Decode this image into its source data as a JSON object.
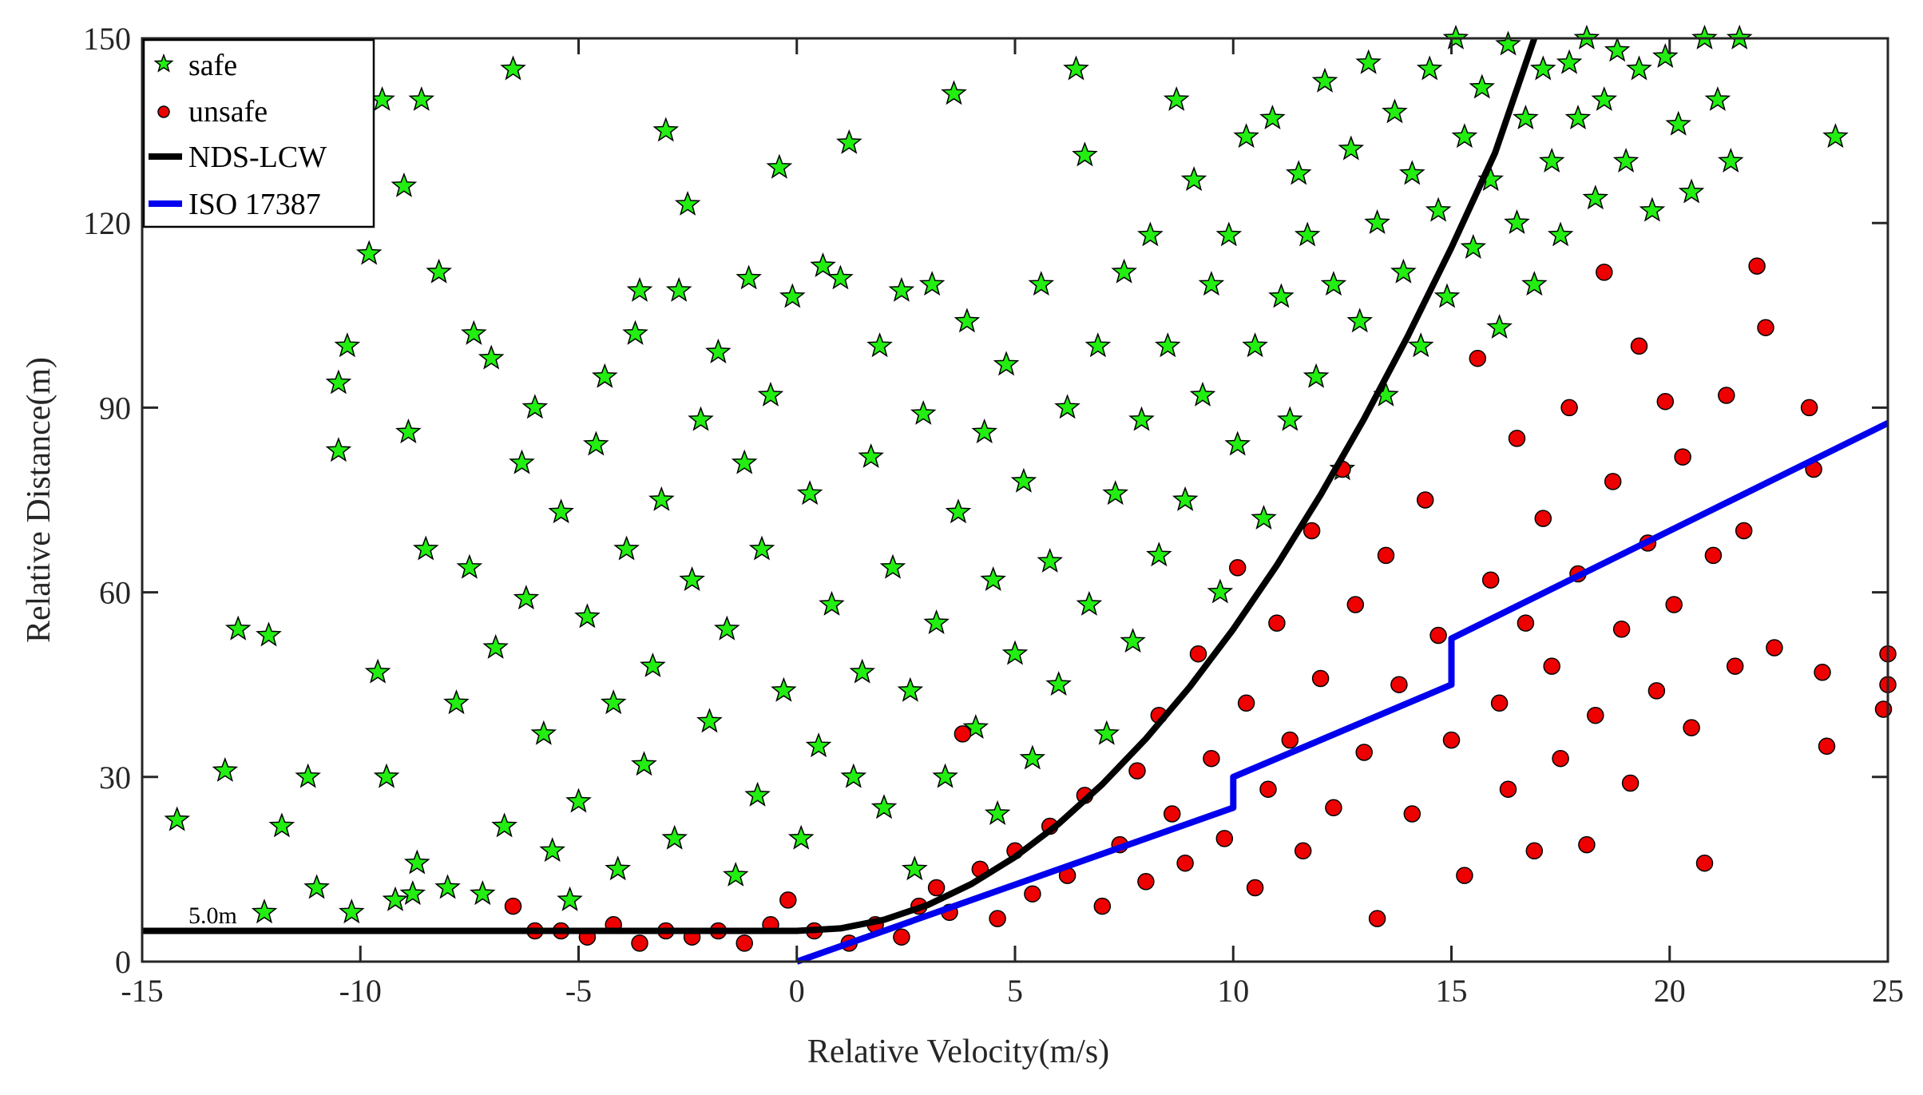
{
  "chart_data": {
    "type": "scatter",
    "xlabel": "Relative Velocity(m/s)",
    "ylabel": "Relative Distance(m)",
    "xlim": [
      -15,
      25
    ],
    "ylim": [
      0,
      150
    ],
    "xticks": [
      "-15",
      "-10",
      "-5",
      "0",
      "5",
      "10",
      "15",
      "20",
      "25"
    ],
    "yticks": [
      "0",
      "30",
      "60",
      "90",
      "120",
      "150"
    ],
    "grid": false,
    "legend_position": "top-left",
    "annotation": "5.0m",
    "series": [
      {
        "name": "safe",
        "kind": "scatter",
        "marker": "star",
        "color": "#22ee11",
        "points": [
          [
            -14.2,
            23
          ],
          [
            -13.1,
            31
          ],
          [
            -12.8,
            54
          ],
          [
            -12.2,
            8
          ],
          [
            -12.1,
            53
          ],
          [
            -11.8,
            22
          ],
          [
            -11.2,
            30
          ],
          [
            -11.0,
            12
          ],
          [
            -10.5,
            83
          ],
          [
            -10.5,
            94
          ],
          [
            -10.3,
            100
          ],
          [
            -10.2,
            8
          ],
          [
            -9.8,
            115
          ],
          [
            -9.6,
            47
          ],
          [
            -9.5,
            140
          ],
          [
            -9.4,
            30
          ],
          [
            -9.2,
            10
          ],
          [
            -9.0,
            126
          ],
          [
            -8.9,
            86
          ],
          [
            -8.8,
            11
          ],
          [
            -8.7,
            16
          ],
          [
            -8.6,
            140
          ],
          [
            -8.5,
            67
          ],
          [
            -8.2,
            112
          ],
          [
            -8.0,
            12
          ],
          [
            -7.8,
            42
          ],
          [
            -7.5,
            64
          ],
          [
            -7.4,
            102
          ],
          [
            -7.2,
            11
          ],
          [
            -7.0,
            98
          ],
          [
            -6.9,
            51
          ],
          [
            -6.7,
            22
          ],
          [
            -6.5,
            145
          ],
          [
            -6.3,
            81
          ],
          [
            -6.2,
            59
          ],
          [
            -6.0,
            90
          ],
          [
            -5.8,
            37
          ],
          [
            -5.6,
            18
          ],
          [
            -5.4,
            73
          ],
          [
            -5.2,
            10
          ],
          [
            -5.0,
            26
          ],
          [
            -4.8,
            56
          ],
          [
            -4.6,
            84
          ],
          [
            -4.4,
            95
          ],
          [
            -4.2,
            42
          ],
          [
            -4.1,
            15
          ],
          [
            -3.9,
            67
          ],
          [
            -3.7,
            102
          ],
          [
            -3.6,
            109
          ],
          [
            -3.5,
            32
          ],
          [
            -3.3,
            48
          ],
          [
            -3.1,
            75
          ],
          [
            -3.0,
            135
          ],
          [
            -2.8,
            20
          ],
          [
            -2.7,
            109
          ],
          [
            -2.5,
            123
          ],
          [
            -2.4,
            62
          ],
          [
            -2.2,
            88
          ],
          [
            -2.0,
            39
          ],
          [
            -1.8,
            99
          ],
          [
            -1.6,
            54
          ],
          [
            -1.4,
            14
          ],
          [
            -1.2,
            81
          ],
          [
            -1.1,
            111
          ],
          [
            -0.9,
            27
          ],
          [
            -0.8,
            67
          ],
          [
            -0.6,
            92
          ],
          [
            -0.4,
            129
          ],
          [
            -0.3,
            44
          ],
          [
            -0.1,
            108
          ],
          [
            0.1,
            20
          ],
          [
            0.3,
            76
          ],
          [
            0.5,
            35
          ],
          [
            0.6,
            113
          ],
          [
            0.8,
            58
          ],
          [
            1.0,
            111
          ],
          [
            1.2,
            133
          ],
          [
            1.3,
            30
          ],
          [
            1.5,
            47
          ],
          [
            1.7,
            82
          ],
          [
            1.9,
            100
          ],
          [
            2.0,
            25
          ],
          [
            2.2,
            64
          ],
          [
            2.4,
            109
          ],
          [
            2.6,
            44
          ],
          [
            2.7,
            15
          ],
          [
            2.9,
            89
          ],
          [
            3.1,
            110
          ],
          [
            3.2,
            55
          ],
          [
            3.4,
            30
          ],
          [
            3.6,
            141
          ],
          [
            3.7,
            73
          ],
          [
            3.9,
            104
          ],
          [
            4.1,
            38
          ],
          [
            4.3,
            86
          ],
          [
            4.5,
            62
          ],
          [
            4.6,
            24
          ],
          [
            4.8,
            97
          ],
          [
            5.0,
            50
          ],
          [
            5.2,
            78
          ],
          [
            5.4,
            33
          ],
          [
            5.6,
            110
          ],
          [
            5.8,
            65
          ],
          [
            6.0,
            45
          ],
          [
            6.2,
            90
          ],
          [
            6.4,
            145
          ],
          [
            6.6,
            131
          ],
          [
            6.7,
            58
          ],
          [
            6.9,
            100
          ],
          [
            7.1,
            37
          ],
          [
            7.3,
            76
          ],
          [
            7.5,
            112
          ],
          [
            7.7,
            52
          ],
          [
            7.9,
            88
          ],
          [
            8.1,
            118
          ],
          [
            8.3,
            66
          ],
          [
            8.5,
            100
          ],
          [
            8.7,
            140
          ],
          [
            8.9,
            75
          ],
          [
            9.1,
            127
          ],
          [
            9.3,
            92
          ],
          [
            9.5,
            110
          ],
          [
            9.7,
            60
          ],
          [
            9.9,
            118
          ],
          [
            10.1,
            84
          ],
          [
            10.3,
            134
          ],
          [
            10.5,
            100
          ],
          [
            10.7,
            72
          ],
          [
            10.9,
            137
          ],
          [
            11.1,
            108
          ],
          [
            11.3,
            88
          ],
          [
            11.5,
            128
          ],
          [
            11.7,
            118
          ],
          [
            11.9,
            95
          ],
          [
            12.1,
            143
          ],
          [
            12.3,
            110
          ],
          [
            12.5,
            80
          ],
          [
            12.7,
            132
          ],
          [
            12.9,
            104
          ],
          [
            13.1,
            146
          ],
          [
            13.3,
            120
          ],
          [
            13.5,
            92
          ],
          [
            13.7,
            138
          ],
          [
            13.9,
            112
          ],
          [
            14.1,
            128
          ],
          [
            14.3,
            100
          ],
          [
            14.5,
            145
          ],
          [
            14.7,
            122
          ],
          [
            14.9,
            108
          ],
          [
            15.1,
            150
          ],
          [
            15.3,
            134
          ],
          [
            15.5,
            116
          ],
          [
            15.7,
            142
          ],
          [
            15.9,
            127
          ],
          [
            16.1,
            103
          ],
          [
            16.3,
            149
          ],
          [
            16.5,
            120
          ],
          [
            16.7,
            137
          ],
          [
            16.9,
            110
          ],
          [
            17.1,
            145
          ],
          [
            17.3,
            130
          ],
          [
            17.5,
            118
          ],
          [
            17.7,
            146
          ],
          [
            17.9,
            137
          ],
          [
            18.1,
            150
          ],
          [
            18.3,
            124
          ],
          [
            18.5,
            140
          ],
          [
            18.8,
            148
          ],
          [
            19.0,
            130
          ],
          [
            19.3,
            145
          ],
          [
            19.6,
            122
          ],
          [
            19.9,
            147
          ],
          [
            20.2,
            136
          ],
          [
            20.5,
            125
          ],
          [
            20.8,
            150
          ],
          [
            21.1,
            140
          ],
          [
            21.4,
            130
          ],
          [
            21.6,
            150
          ],
          [
            23.8,
            134
          ]
        ]
      },
      {
        "name": "unsafe",
        "kind": "scatter",
        "marker": "circle",
        "color": "#ee0000",
        "points": [
          [
            -6.5,
            9
          ],
          [
            -6.0,
            5
          ],
          [
            -5.4,
            5
          ],
          [
            -4.8,
            4
          ],
          [
            -4.2,
            6
          ],
          [
            -3.6,
            3
          ],
          [
            -3.0,
            5
          ],
          [
            -2.4,
            4
          ],
          [
            -1.8,
            5
          ],
          [
            -1.2,
            3
          ],
          [
            -0.6,
            6
          ],
          [
            -0.2,
            10
          ],
          [
            0.4,
            5
          ],
          [
            1.2,
            3
          ],
          [
            1.8,
            6
          ],
          [
            2.4,
            4
          ],
          [
            2.8,
            9
          ],
          [
            3.2,
            12
          ],
          [
            3.5,
            8
          ],
          [
            3.8,
            37
          ],
          [
            4.2,
            15
          ],
          [
            4.6,
            7
          ],
          [
            5.0,
            18
          ],
          [
            5.4,
            11
          ],
          [
            5.8,
            22
          ],
          [
            6.2,
            14
          ],
          [
            6.6,
            27
          ],
          [
            7.0,
            9
          ],
          [
            7.4,
            19
          ],
          [
            7.8,
            31
          ],
          [
            8.0,
            13
          ],
          [
            8.3,
            40
          ],
          [
            8.6,
            24
          ],
          [
            8.9,
            16
          ],
          [
            9.2,
            50
          ],
          [
            9.5,
            33
          ],
          [
            9.8,
            20
          ],
          [
            10.1,
            64
          ],
          [
            10.3,
            42
          ],
          [
            10.5,
            12
          ],
          [
            10.8,
            28
          ],
          [
            11.0,
            55
          ],
          [
            11.3,
            36
          ],
          [
            11.6,
            18
          ],
          [
            11.8,
            70
          ],
          [
            12.0,
            46
          ],
          [
            12.3,
            25
          ],
          [
            12.5,
            80
          ],
          [
            12.8,
            58
          ],
          [
            13.0,
            34
          ],
          [
            13.3,
            7
          ],
          [
            13.5,
            66
          ],
          [
            13.8,
            45
          ],
          [
            14.1,
            24
          ],
          [
            14.4,
            75
          ],
          [
            14.7,
            53
          ],
          [
            15.0,
            36
          ],
          [
            15.3,
            14
          ],
          [
            15.6,
            98
          ],
          [
            15.9,
            62
          ],
          [
            16.1,
            42
          ],
          [
            16.3,
            28
          ],
          [
            16.5,
            85
          ],
          [
            16.7,
            55
          ],
          [
            16.9,
            18
          ],
          [
            17.1,
            72
          ],
          [
            17.3,
            48
          ],
          [
            17.5,
            33
          ],
          [
            17.7,
            90
          ],
          [
            17.9,
            63
          ],
          [
            18.1,
            19
          ],
          [
            18.3,
            40
          ],
          [
            18.5,
            112
          ],
          [
            18.7,
            78
          ],
          [
            18.9,
            54
          ],
          [
            19.1,
            29
          ],
          [
            19.3,
            100
          ],
          [
            19.5,
            68
          ],
          [
            19.7,
            44
          ],
          [
            19.9,
            91
          ],
          [
            20.1,
            58
          ],
          [
            20.3,
            82
          ],
          [
            20.5,
            38
          ],
          [
            20.8,
            16
          ],
          [
            21.0,
            66
          ],
          [
            21.3,
            92
          ],
          [
            21.5,
            48
          ],
          [
            21.7,
            70
          ],
          [
            22.0,
            113
          ],
          [
            22.2,
            103
          ],
          [
            22.4,
            51
          ],
          [
            23.2,
            90
          ],
          [
            23.3,
            80
          ],
          [
            23.5,
            47
          ],
          [
            23.6,
            35
          ],
          [
            24.9,
            41
          ],
          [
            25.0,
            45
          ],
          [
            25.0,
            50
          ]
        ]
      },
      {
        "name": "NDS-LCW",
        "kind": "line",
        "color": "#000000",
        "points": [
          [
            -15,
            5
          ],
          [
            0,
            5
          ],
          [
            1,
            5.4
          ],
          [
            2,
            6.8
          ],
          [
            3,
            9.2
          ],
          [
            4,
            12.6
          ],
          [
            5,
            17
          ],
          [
            6,
            22.4
          ],
          [
            7,
            28.8
          ],
          [
            8,
            36.2
          ],
          [
            9,
            44.6
          ],
          [
            10,
            54
          ],
          [
            11,
            64.4
          ],
          [
            12,
            75.8
          ],
          [
            13,
            88.2
          ],
          [
            14,
            101.6
          ],
          [
            15,
            116
          ],
          [
            16,
            131.4
          ],
          [
            16.9,
            150
          ]
        ]
      },
      {
        "name": "ISO 17387",
        "kind": "line",
        "color": "#0000ee",
        "points": [
          [
            0,
            0
          ],
          [
            10,
            25
          ],
          [
            10,
            30
          ],
          [
            15,
            45
          ],
          [
            15,
            52.5
          ],
          [
            25,
            87.5
          ]
        ]
      }
    ]
  }
}
